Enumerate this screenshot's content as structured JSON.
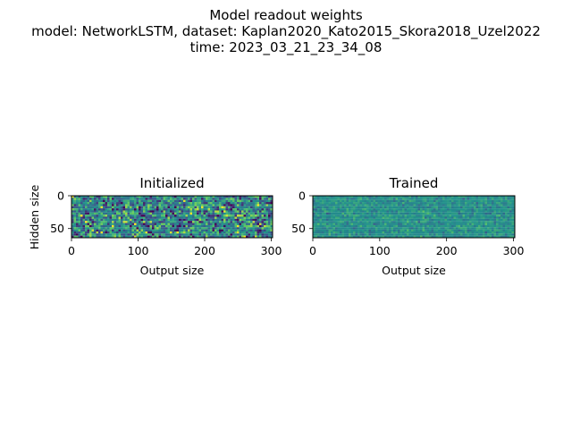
{
  "figure": {
    "suptitle_lines": [
      "Model readout weights",
      "model: NetworkLSTM, dataset: Kaplan2020_Kato2015_Skora2018_Uzel2022",
      "time: 2023_03_21_23_34_08"
    ]
  },
  "chart_data": [
    {
      "type": "heatmap",
      "title": "Initialized",
      "xlabel": "Output size",
      "ylabel": "Hidden size",
      "xlim": [
        0,
        302
      ],
      "ylim": [
        64,
        0
      ],
      "xticks": [
        0,
        100,
        200,
        300
      ],
      "yticks": [
        0,
        50
      ],
      "rows": 64,
      "cols": 302,
      "colormap": "viridis",
      "value_spread": "wide",
      "notes": "Random initial weights; high-contrast viridis noise (dark blue to yellow)."
    },
    {
      "type": "heatmap",
      "title": "Trained",
      "xlabel": "Output size",
      "ylabel": "",
      "xlim": [
        0,
        302
      ],
      "ylim": [
        64,
        0
      ],
      "xticks": [
        0,
        100,
        200,
        300
      ],
      "yticks": [
        0,
        50
      ],
      "rows": 64,
      "cols": 302,
      "colormap": "viridis",
      "value_spread": "narrow",
      "notes": "Trained weights; low-contrast noise concentrated around mid-range teal/green."
    }
  ],
  "colors": {
    "viridis": [
      "#440154",
      "#3b528b",
      "#21918c",
      "#5ec962",
      "#fde725"
    ]
  }
}
